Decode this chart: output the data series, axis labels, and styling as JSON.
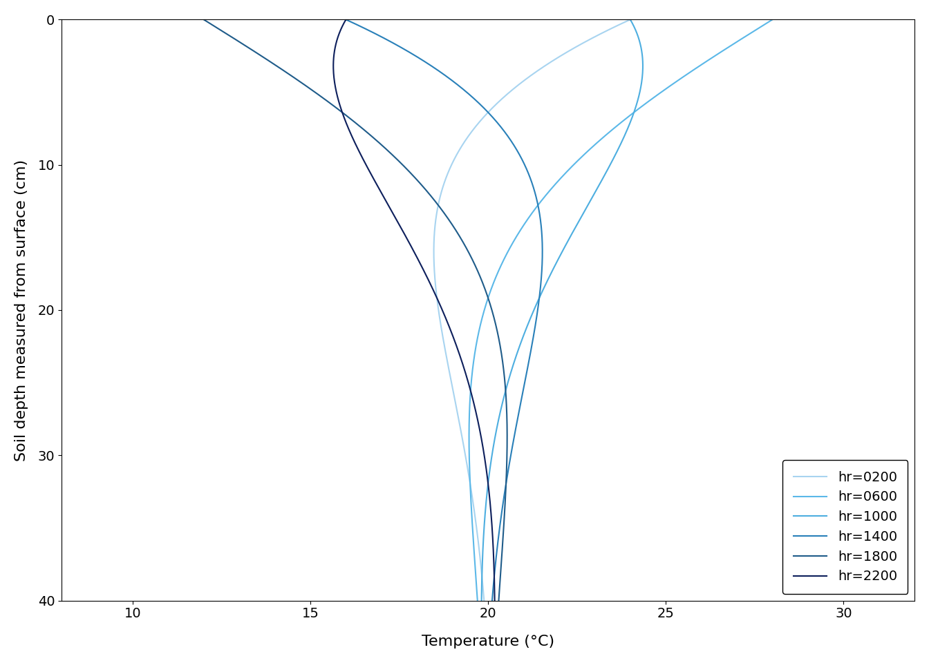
{
  "T_mean": 20.0,
  "A0": 8.0,
  "D": 12.2,
  "hours": [
    2,
    6,
    10,
    14,
    18,
    22
  ],
  "hour_labels": [
    "hr=0200",
    "hr=0600",
    "hr=1000",
    "hr=1400",
    "hr=1800",
    "hr=2200"
  ],
  "colors": [
    "#a8d4f0",
    "#5bb8e8",
    "#4daee0",
    "#2980b9",
    "#1f5c8a",
    "#0d1f5c"
  ],
  "depth_max": 40,
  "depth_n": 500,
  "xlim": [
    8,
    32
  ],
  "ylim": [
    40,
    0
  ],
  "xticks": [
    10,
    15,
    20,
    25,
    30
  ],
  "yticks": [
    0,
    10,
    20,
    30,
    40
  ],
  "xlabel": "Temperature (°C)",
  "ylabel": "Soil depth measured from surface (cm)",
  "linewidth": 1.5,
  "legend_fontsize": 14,
  "axis_label_fontsize": 16,
  "tick_fontsize": 14
}
